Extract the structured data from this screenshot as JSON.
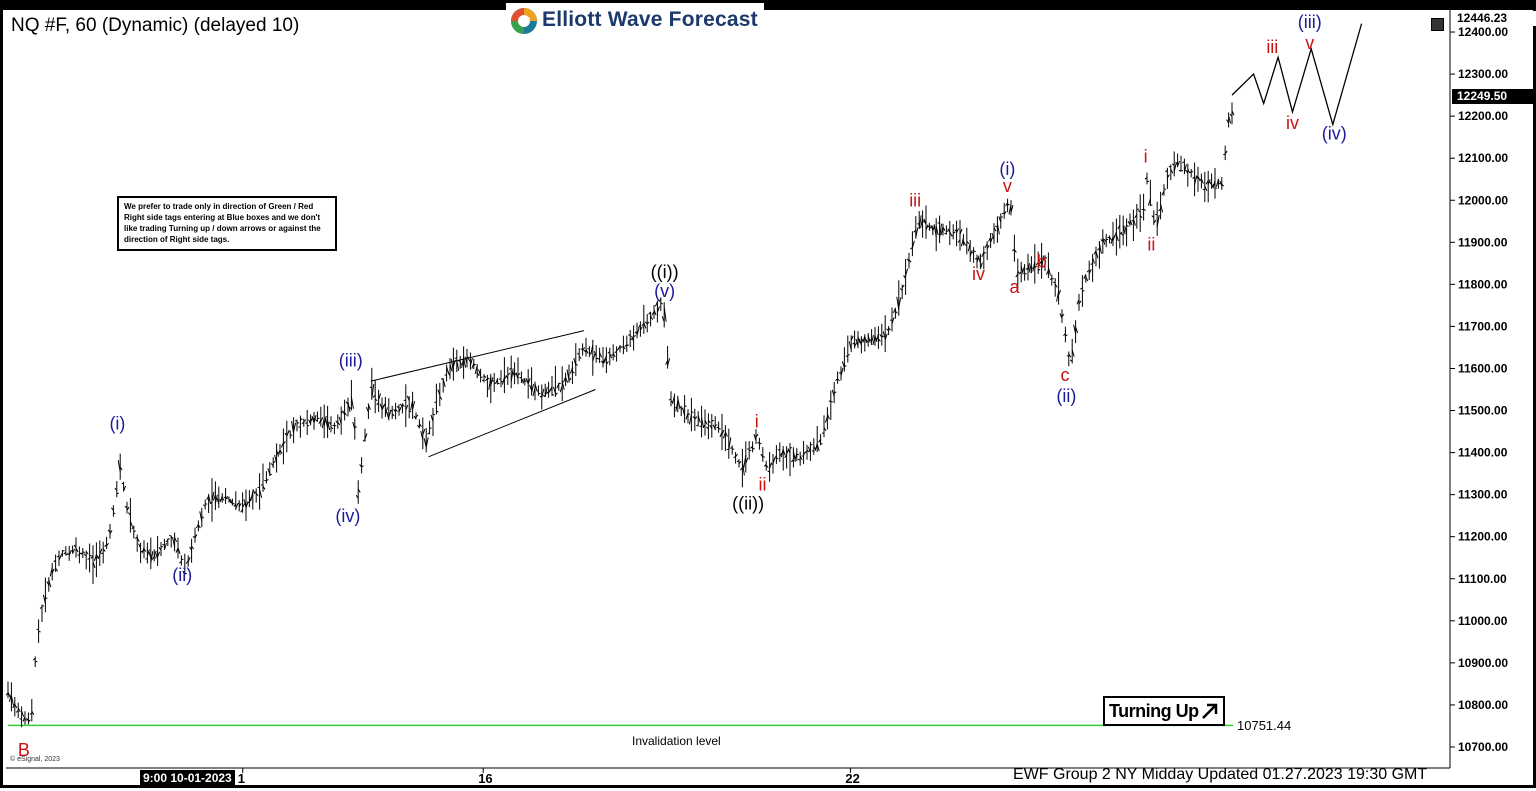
{
  "header": {
    "title": "NQ #F, 60 (Dynamic) (delayed 10)",
    "logo_text": "Elliott Wave Forecast"
  },
  "note": "We prefer to trade only in direction of Green / Red Right side tags entering at Blue boxes and we don't like trading Turning up / down arrows or against the direction of Right side tags.",
  "turning_up": "Turning Up",
  "invalidation": {
    "label": "Invalidation level",
    "value": "10751.44"
  },
  "footer": "EWF Group 2 NY Midday Updated 01.27.2023 19:30 GMT",
  "copyright": "© eSignal, 2023",
  "date_box": "9:00 10-01-2023",
  "price_tags": {
    "top": "12446.23",
    "last": "12249.50"
  },
  "colors": {
    "blue": "#1a1a9a",
    "red": "#cc1111",
    "black": "#000000",
    "green": "#33cc33"
  },
  "chart_data": {
    "type": "line",
    "title": "NQ #F, 60 (Dynamic) (delayed 10)",
    "ylim": [
      10650,
      12450
    ],
    "y_ticks": [
      10700,
      10800,
      10900,
      11000,
      11100,
      11200,
      11300,
      11400,
      11500,
      11600,
      11700,
      11800,
      11900,
      12000,
      12100,
      12200,
      12300,
      12400
    ],
    "x_ticks": [
      {
        "label": "1",
        "x": 0.163
      },
      {
        "label": "16",
        "x": 0.33
      },
      {
        "label": "22",
        "x": 0.585
      }
    ],
    "price_path": [
      [
        0.0,
        10830
      ],
      [
        0.01,
        10770
      ],
      [
        0.016,
        10760
      ],
      [
        0.02,
        10960
      ],
      [
        0.026,
        11060
      ],
      [
        0.03,
        11110
      ],
      [
        0.037,
        11160
      ],
      [
        0.048,
        11170
      ],
      [
        0.06,
        11140
      ],
      [
        0.07,
        11190
      ],
      [
        0.078,
        11370
      ],
      [
        0.083,
        11260
      ],
      [
        0.092,
        11170
      ],
      [
        0.1,
        11150
      ],
      [
        0.108,
        11180
      ],
      [
        0.115,
        11200
      ],
      [
        0.123,
        11120
      ],
      [
        0.13,
        11200
      ],
      [
        0.138,
        11290
      ],
      [
        0.152,
        11290
      ],
      [
        0.163,
        11270
      ],
      [
        0.175,
        11310
      ],
      [
        0.185,
        11380
      ],
      [
        0.2,
        11470
      ],
      [
        0.215,
        11480
      ],
      [
        0.227,
        11460
      ],
      [
        0.24,
        11530
      ],
      [
        0.243,
        11300
      ],
      [
        0.252,
        11550
      ],
      [
        0.265,
        11490
      ],
      [
        0.28,
        11520
      ],
      [
        0.29,
        11420
      ],
      [
        0.305,
        11600
      ],
      [
        0.32,
        11620
      ],
      [
        0.335,
        11560
      ],
      [
        0.35,
        11590
      ],
      [
        0.37,
        11540
      ],
      [
        0.385,
        11560
      ],
      [
        0.4,
        11650
      ],
      [
        0.415,
        11620
      ],
      [
        0.43,
        11660
      ],
      [
        0.455,
        11760
      ],
      [
        0.46,
        11530
      ],
      [
        0.475,
        11480
      ],
      [
        0.495,
        11460
      ],
      [
        0.51,
        11360
      ],
      [
        0.52,
        11440
      ],
      [
        0.527,
        11360
      ],
      [
        0.535,
        11400
      ],
      [
        0.55,
        11390
      ],
      [
        0.565,
        11430
      ],
      [
        0.575,
        11560
      ],
      [
        0.585,
        11660
      ],
      [
        0.61,
        11680
      ],
      [
        0.62,
        11770
      ],
      [
        0.632,
        11950
      ],
      [
        0.645,
        11930
      ],
      [
        0.66,
        11920
      ],
      [
        0.675,
        11850
      ],
      [
        0.69,
        11960
      ],
      [
        0.696,
        12000
      ],
      [
        0.7,
        11830
      ],
      [
        0.713,
        11840
      ],
      [
        0.72,
        11860
      ],
      [
        0.73,
        11770
      ],
      [
        0.738,
        11600
      ],
      [
        0.745,
        11790
      ],
      [
        0.76,
        11900
      ],
      [
        0.775,
        11930
      ],
      [
        0.79,
        11990
      ],
      [
        0.79,
        12070
      ],
      [
        0.797,
        11930
      ],
      [
        0.805,
        12060
      ],
      [
        0.812,
        12090
      ],
      [
        0.83,
        12040
      ],
      [
        0.843,
        12040
      ],
      [
        0.848,
        12200
      ],
      [
        0.857,
        12250
      ],
      [
        0.862,
        12300
      ],
      [
        0.872,
        12220
      ],
      [
        0.882,
        12330
      ],
      [
        0.895,
        12210
      ],
      [
        0.905,
        12360
      ],
      [
        0.92,
        12180
      ],
      [
        0.94,
        12420
      ]
    ],
    "waves": [
      {
        "label": "B",
        "x": 0.011,
        "price": 10678,
        "color": "red"
      },
      {
        "label": "(i)",
        "x": 0.076,
        "price": 11455,
        "color": "blue"
      },
      {
        "label": "(ii)",
        "x": 0.121,
        "price": 11095,
        "color": "blue"
      },
      {
        "label": "(iii)",
        "x": 0.238,
        "price": 11605,
        "color": "blue"
      },
      {
        "label": "(iv)",
        "x": 0.236,
        "price": 11235,
        "color": "blue"
      },
      {
        "label": "((i))",
        "x": 0.456,
        "price": 11815,
        "color": "black"
      },
      {
        "label": "(v)",
        "x": 0.456,
        "price": 11770,
        "color": "blue"
      },
      {
        "label": "((ii))",
        "x": 0.514,
        "price": 11265,
        "color": "black"
      },
      {
        "label": "i",
        "x": 0.52,
        "price": 11460,
        "color": "red"
      },
      {
        "label": "ii",
        "x": 0.524,
        "price": 11310,
        "color": "red"
      },
      {
        "label": "iii",
        "x": 0.63,
        "price": 11985,
        "color": "red"
      },
      {
        "label": "iv",
        "x": 0.674,
        "price": 11810,
        "color": "red"
      },
      {
        "label": "(i)",
        "x": 0.694,
        "price": 12060,
        "color": "blue"
      },
      {
        "label": "v",
        "x": 0.694,
        "price": 12020,
        "color": "red"
      },
      {
        "label": "a",
        "x": 0.699,
        "price": 11780,
        "color": "red"
      },
      {
        "label": "b",
        "x": 0.718,
        "price": 11840,
        "color": "red"
      },
      {
        "label": "c",
        "x": 0.734,
        "price": 11570,
        "color": "red"
      },
      {
        "label": "(ii)",
        "x": 0.735,
        "price": 11520,
        "color": "blue"
      },
      {
        "label": "i",
        "x": 0.79,
        "price": 12090,
        "color": "red"
      },
      {
        "label": "ii",
        "x": 0.794,
        "price": 11880,
        "color": "red"
      },
      {
        "label": "iii",
        "x": 0.878,
        "price": 12350,
        "color": "red"
      },
      {
        "label": "iv",
        "x": 0.892,
        "price": 12170,
        "color": "red"
      },
      {
        "label": "v",
        "x": 0.904,
        "price": 12360,
        "color": "red"
      },
      {
        "label": "(iii)",
        "x": 0.904,
        "price": 12410,
        "color": "blue"
      },
      {
        "label": "(iv)",
        "x": 0.921,
        "price": 12145,
        "color": "blue"
      }
    ],
    "projection": [
      [
        0.85,
        12250
      ],
      [
        0.865,
        12300
      ],
      [
        0.872,
        12230
      ],
      [
        0.882,
        12340
      ],
      [
        0.892,
        12210
      ],
      [
        0.905,
        12360
      ],
      [
        0.92,
        12180
      ],
      [
        0.94,
        12420
      ]
    ],
    "triangle": {
      "upper": [
        [
          0.252,
          11570
        ],
        [
          0.4,
          11690
        ]
      ],
      "lower": [
        [
          0.292,
          11390
        ],
        [
          0.408,
          11550
        ]
      ]
    },
    "invalidation_price": 10751.44
  }
}
